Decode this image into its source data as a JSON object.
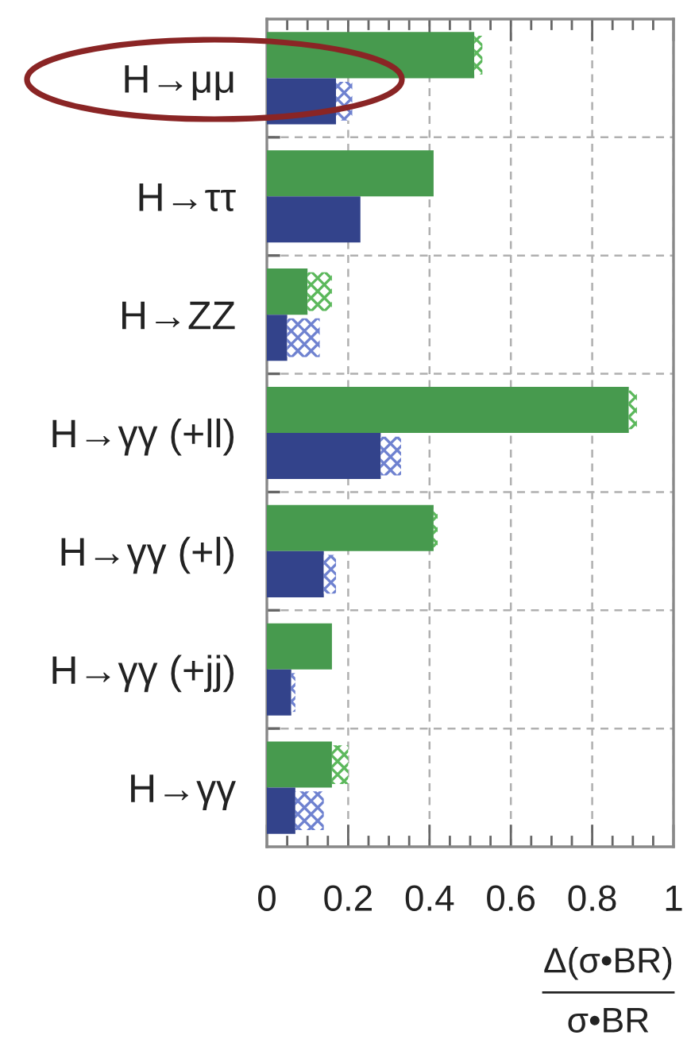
{
  "chart_data": {
    "type": "bar",
    "orientation": "horizontal",
    "xlabel": "Δ(σ•BR)\nσ•BR",
    "categories": [
      "H→μμ",
      "H→ττ",
      "H→ZZ",
      "H→γγ (+ll)",
      "H→γγ (+l)",
      "H→γγ (+jj)",
      "H→γγ"
    ],
    "series": [
      {
        "color": "#479a4e",
        "values": [
          0.51,
          0.41,
          0.1,
          0.89,
          0.41,
          0.16,
          0.16
        ]
      },
      {
        "color": "#5cb85c",
        "base": [
          0.51,
          null,
          0.1,
          0.89,
          0.41,
          null,
          0.16
        ],
        "values": [
          0.02,
          null,
          0.06,
          0.02,
          0.01,
          null,
          0.04
        ]
      },
      {
        "color": "#33438b",
        "values": [
          0.17,
          0.23,
          0.05,
          0.28,
          0.14,
          0.06,
          0.07
        ]
      },
      {
        "color": "#6f82d0",
        "base": [
          0.17,
          null,
          0.05,
          0.28,
          0.14,
          0.06,
          0.07
        ],
        "values": [
          0.04,
          null,
          0.08,
          0.05,
          0.03,
          0.01,
          0.07
        ]
      }
    ],
    "xlim": [
      0,
      1
    ],
    "xticks": [
      0,
      0.2,
      0.4,
      0.6,
      0.8,
      1
    ],
    "grid": true
  }
}
